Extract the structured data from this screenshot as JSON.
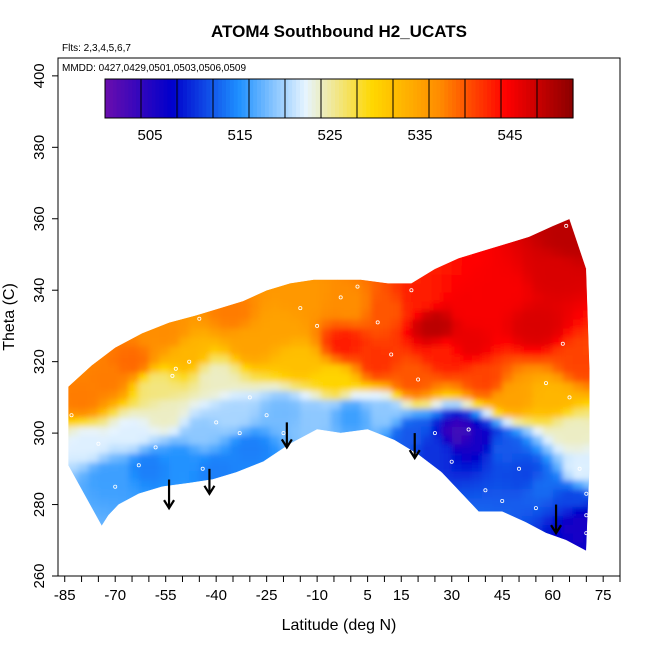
{
  "chart_data": {
    "type": "heatmap",
    "title": "ATOM4 Southbound H2_UCATS",
    "subtitle_flights": "Flts: 2,3,4,5,6,7",
    "subtitle_dates": "MMDD: 0427,0429,0501,0503,0506,0509",
    "xlabel": "Latitude (deg N)",
    "ylabel": "Theta (C)",
    "xlim": [
      -87,
      80
    ],
    "ylim": [
      260,
      405
    ],
    "x_ticks": [
      -85,
      -70,
      -55,
      -40,
      -25,
      -10,
      5,
      15,
      30,
      45,
      60,
      75
    ],
    "x_minor_step": 5,
    "y_ticks": [
      260,
      280,
      300,
      320,
      340,
      360,
      380,
      400
    ],
    "colorbar": {
      "range": [
        500,
        552
      ],
      "ticks": [
        505,
        515,
        525,
        535,
        545
      ],
      "colors": [
        "#6a0dad",
        "#0000cc",
        "#1e90ff",
        "#e6f4ff",
        "#ffd700",
        "#ff8c00",
        "#ff0000",
        "#8b0000"
      ]
    },
    "boundary_bottom": [
      [
        -74,
        274
      ],
      [
        -72,
        277
      ],
      [
        -69,
        280
      ],
      [
        -63,
        283
      ],
      [
        -56,
        285
      ],
      [
        -48,
        286
      ],
      [
        -41,
        287
      ],
      [
        -34,
        289
      ],
      [
        -26,
        292
      ],
      [
        -18,
        297
      ],
      [
        -10,
        301
      ],
      [
        -3,
        300
      ],
      [
        5,
        301
      ],
      [
        13,
        298
      ],
      [
        20,
        294
      ],
      [
        27,
        289
      ],
      [
        33,
        283
      ],
      [
        38,
        278
      ],
      [
        45,
        278
      ],
      [
        52,
        275
      ],
      [
        58,
        272
      ],
      [
        64,
        270
      ],
      [
        70,
        267
      ]
    ],
    "boundary_top": [
      [
        -84,
        291
      ],
      [
        -84,
        313
      ],
      [
        -77,
        319
      ],
      [
        -70,
        324
      ],
      [
        -62,
        328
      ],
      [
        -54,
        331
      ],
      [
        -46,
        333
      ],
      [
        -39,
        335
      ],
      [
        -32,
        337
      ],
      [
        -25,
        340
      ],
      [
        -18,
        342
      ],
      [
        -11,
        343
      ],
      [
        -4,
        343
      ],
      [
        3,
        343
      ],
      [
        11,
        342
      ],
      [
        18,
        342
      ],
      [
        25,
        346
      ],
      [
        32,
        349
      ],
      [
        39,
        351
      ],
      [
        46,
        353
      ],
      [
        53,
        355
      ],
      [
        60,
        358
      ],
      [
        65,
        360
      ],
      [
        70,
        346
      ],
      [
        71,
        318
      ],
      [
        71,
        290
      ],
      [
        70,
        267
      ]
    ],
    "field_nodes": [
      {
        "x": -78,
        "y": 297,
        "v": 522
      },
      {
        "x": -72,
        "y": 288,
        "v": 516
      },
      {
        "x": -65,
        "y": 300,
        "v": 522
      },
      {
        "x": -60,
        "y": 291,
        "v": 514
      },
      {
        "x": -55,
        "y": 305,
        "v": 524
      },
      {
        "x": -50,
        "y": 293,
        "v": 515
      },
      {
        "x": -45,
        "y": 300,
        "v": 519
      },
      {
        "x": -40,
        "y": 290,
        "v": 514
      },
      {
        "x": -35,
        "y": 305,
        "v": 520
      },
      {
        "x": -30,
        "y": 296,
        "v": 514
      },
      {
        "x": -20,
        "y": 306,
        "v": 518
      },
      {
        "x": -10,
        "y": 305,
        "v": 519
      },
      {
        "x": 0,
        "y": 305,
        "v": 516
      },
      {
        "x": 10,
        "y": 306,
        "v": 519
      },
      {
        "x": 18,
        "y": 300,
        "v": 512
      },
      {
        "x": 25,
        "y": 296,
        "v": 510
      },
      {
        "x": 32,
        "y": 300,
        "v": 503
      },
      {
        "x": 38,
        "y": 298,
        "v": 506
      },
      {
        "x": 45,
        "y": 296,
        "v": 512
      },
      {
        "x": 52,
        "y": 289,
        "v": 511
      },
      {
        "x": 58,
        "y": 286,
        "v": 513
      },
      {
        "x": 65,
        "y": 282,
        "v": 511
      },
      {
        "x": 68,
        "y": 275,
        "v": 506
      },
      {
        "x": 68,
        "y": 290,
        "v": 522
      },
      {
        "x": -80,
        "y": 310,
        "v": 538
      },
      {
        "x": -72,
        "y": 315,
        "v": 538
      },
      {
        "x": -65,
        "y": 320,
        "v": 539
      },
      {
        "x": -58,
        "y": 313,
        "v": 526
      },
      {
        "x": -48,
        "y": 322,
        "v": 533
      },
      {
        "x": -40,
        "y": 316,
        "v": 524
      },
      {
        "x": -30,
        "y": 325,
        "v": 535
      },
      {
        "x": -22,
        "y": 330,
        "v": 535
      },
      {
        "x": -15,
        "y": 320,
        "v": 532
      },
      {
        "x": -5,
        "y": 315,
        "v": 530
      },
      {
        "x": -2,
        "y": 325,
        "v": 543
      },
      {
        "x": 8,
        "y": 320,
        "v": 542
      },
      {
        "x": 18,
        "y": 315,
        "v": 540
      },
      {
        "x": 28,
        "y": 322,
        "v": 543
      },
      {
        "x": 40,
        "y": 315,
        "v": 541
      },
      {
        "x": 48,
        "y": 310,
        "v": 535
      },
      {
        "x": 60,
        "y": 310,
        "v": 533
      },
      {
        "x": 66,
        "y": 300,
        "v": 524
      },
      {
        "x": -55,
        "y": 328,
        "v": 537
      },
      {
        "x": -35,
        "y": 334,
        "v": 538
      },
      {
        "x": -15,
        "y": 338,
        "v": 536
      },
      {
        "x": 0,
        "y": 336,
        "v": 537
      },
      {
        "x": 10,
        "y": 335,
        "v": 540
      },
      {
        "x": 20,
        "y": 338,
        "v": 543
      },
      {
        "x": 25,
        "y": 330,
        "v": 549
      },
      {
        "x": 35,
        "y": 335,
        "v": 545
      },
      {
        "x": 45,
        "y": 340,
        "v": 545
      },
      {
        "x": 55,
        "y": 330,
        "v": 547
      },
      {
        "x": 60,
        "y": 345,
        "v": 547
      },
      {
        "x": 65,
        "y": 355,
        "v": 549
      },
      {
        "x": 68,
        "y": 320,
        "v": 541
      },
      {
        "x": 35,
        "y": 325,
        "v": 546
      }
    ],
    "sample_points": [
      [
        -83,
        305
      ],
      [
        -75,
        297
      ],
      [
        -70,
        285
      ],
      [
        -63,
        291
      ],
      [
        -58,
        296
      ],
      [
        -53,
        316
      ],
      [
        -48,
        320
      ],
      [
        -44,
        290
      ],
      [
        -40,
        303
      ],
      [
        -33,
        300
      ],
      [
        -30,
        310
      ],
      [
        -25,
        305
      ],
      [
        -20,
        300
      ],
      [
        -15,
        335
      ],
      [
        -10,
        330
      ],
      [
        -3,
        338
      ],
      [
        2,
        341
      ],
      [
        8,
        331
      ],
      [
        12,
        322
      ],
      [
        18,
        340
      ],
      [
        20,
        315
      ],
      [
        25,
        300
      ],
      [
        30,
        292
      ],
      [
        35,
        301
      ],
      [
        40,
        284
      ],
      [
        45,
        281
      ],
      [
        50,
        290
      ],
      [
        55,
        279
      ],
      [
        58,
        314
      ],
      [
        63,
        325
      ],
      [
        65,
        310
      ],
      [
        68,
        290
      ],
      [
        70,
        283
      ],
      [
        70,
        277
      ],
      [
        70,
        272
      ],
      [
        64,
        358
      ],
      [
        -65,
        278
      ],
      [
        -60,
        279
      ],
      [
        -52,
        318
      ],
      [
        -45,
        332
      ]
    ],
    "arrows": [
      {
        "x": -54,
        "y_top": 287,
        "y_tip": 279
      },
      {
        "x": -42,
        "y_top": 290,
        "y_tip": 283
      },
      {
        "x": -19,
        "y_top": 303,
        "y_tip": 296
      },
      {
        "x": 19,
        "y_top": 300,
        "y_tip": 293
      },
      {
        "x": 61,
        "y_top": 280,
        "y_tip": 272
      }
    ]
  }
}
